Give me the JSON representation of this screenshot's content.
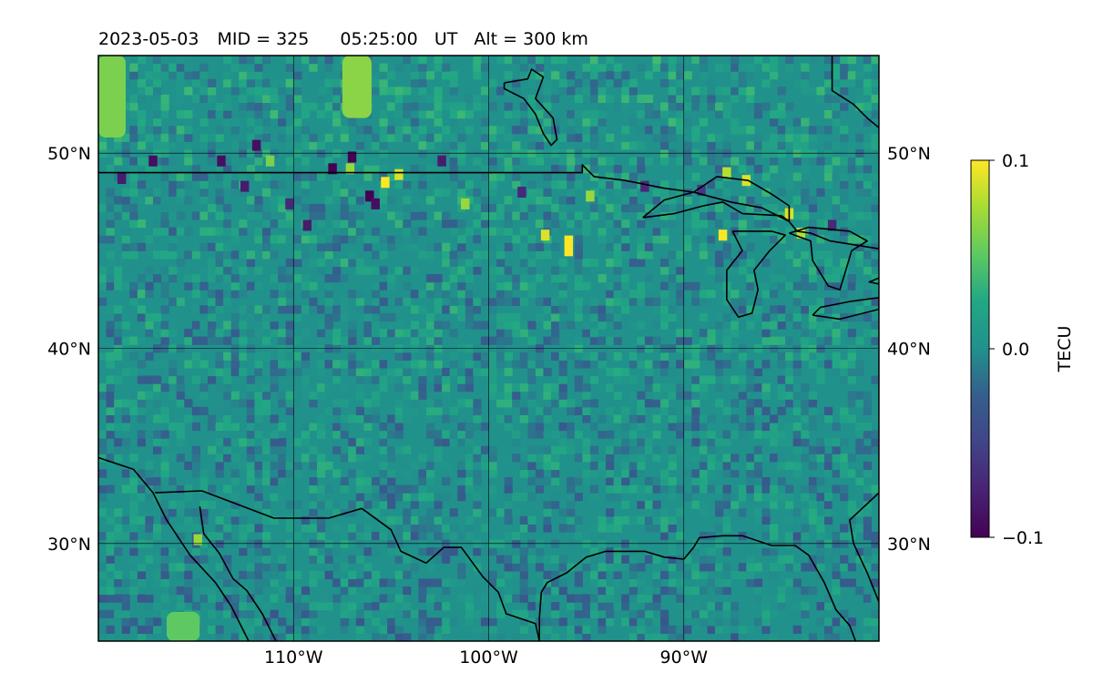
{
  "title": {
    "date": "2023-05-03",
    "mid": "MID = 325",
    "time": "05:25:00",
    "ut": "UT",
    "alt": "Alt = 300 km"
  },
  "map": {
    "lon_range": [
      -120,
      -80
    ],
    "lat_range": [
      25,
      55
    ],
    "grid": true,
    "lat_ticks": [
      {
        "value": 30,
        "label": "30°N"
      },
      {
        "value": 40,
        "label": "40°N"
      },
      {
        "value": 50,
        "label": "50°N"
      }
    ],
    "lon_ticks": [
      {
        "value": -110,
        "label": "110°W"
      },
      {
        "value": -100,
        "label": "100°W"
      },
      {
        "value": -90,
        "label": "90°W"
      }
    ]
  },
  "colorbar": {
    "label": "TECU",
    "colormap": "viridis",
    "range": [
      -0.1,
      0.1
    ],
    "ticks": [
      {
        "value": 0.1,
        "label": "0.1"
      },
      {
        "value": 0.0,
        "label": "0.0"
      },
      {
        "value": -0.1,
        "label": "−0.1"
      }
    ]
  },
  "chart_data": {
    "type": "heatmap",
    "title": "2023-05-03  MID = 325    05:25:00  UT  Alt = 300 km",
    "xlabel": "",
    "ylabel": "",
    "xlim": [
      -120,
      -80
    ],
    "ylim": [
      25,
      55
    ],
    "colorbar_label": "TECU",
    "zlim": [
      -0.1,
      0.1
    ],
    "background_value": 0.0,
    "regions": [
      {
        "name": "noise",
        "lon": [
          -120,
          -80
        ],
        "lat": [
          25,
          55
        ],
        "value": 0.0
      },
      {
        "name": "green-plume-1",
        "lon": [
          -120,
          -118.6
        ],
        "lat": [
          50.8,
          55
        ],
        "value": 0.06
      },
      {
        "name": "green-plume-2",
        "lon": [
          -107.5,
          -106.0
        ],
        "lat": [
          51.8,
          55
        ],
        "value": 0.065
      },
      {
        "name": "green-patch-se",
        "lon": [
          -116.5,
          -114.8
        ],
        "lat": [
          25,
          26.5
        ],
        "value": 0.05
      }
    ],
    "hot_spots": [
      {
        "lon": -105.3,
        "lat": 48.5,
        "value": 0.1
      },
      {
        "lon": -104.6,
        "lat": 48.9,
        "value": 0.09
      },
      {
        "lon": -95.9,
        "lat": 45.0,
        "value": 0.1
      },
      {
        "lon": -95.9,
        "lat": 45.5,
        "value": 0.1
      },
      {
        "lon": -97.1,
        "lat": 45.8,
        "value": 0.09
      },
      {
        "lon": -88.0,
        "lat": 45.8,
        "value": 0.1
      },
      {
        "lon": -86.8,
        "lat": 48.6,
        "value": 0.09
      },
      {
        "lon": -84.6,
        "lat": 46.9,
        "value": 0.09
      },
      {
        "lon": -87.8,
        "lat": 49.0,
        "value": 0.08
      },
      {
        "lon": -84.0,
        "lat": 45.9,
        "value": 0.08
      },
      {
        "lon": -101.2,
        "lat": 47.4,
        "value": 0.07
      },
      {
        "lon": -107.1,
        "lat": 49.2,
        "value": 0.07
      },
      {
        "lon": -111.2,
        "lat": 49.6,
        "value": 0.06
      },
      {
        "lon": -94.8,
        "lat": 47.8,
        "value": 0.07
      },
      {
        "lon": -114.9,
        "lat": 30.2,
        "value": 0.07
      }
    ],
    "cold_spots": [
      {
        "lon": -107.0,
        "lat": 49.8,
        "value": -0.1
      },
      {
        "lon": -108.0,
        "lat": 49.2,
        "value": -0.1
      },
      {
        "lon": -106.1,
        "lat": 47.8,
        "value": -0.1
      },
      {
        "lon": -105.8,
        "lat": 47.4,
        "value": -0.09
      },
      {
        "lon": -111.9,
        "lat": 50.4,
        "value": -0.09
      },
      {
        "lon": -113.7,
        "lat": 49.6,
        "value": -0.09
      },
      {
        "lon": -117.2,
        "lat": 49.6,
        "value": -0.09
      },
      {
        "lon": -118.8,
        "lat": 48.7,
        "value": -0.08
      },
      {
        "lon": -112.5,
        "lat": 48.3,
        "value": -0.08
      },
      {
        "lon": -110.2,
        "lat": 47.4,
        "value": -0.07
      },
      {
        "lon": -109.3,
        "lat": 46.3,
        "value": -0.08
      },
      {
        "lon": -102.4,
        "lat": 49.6,
        "value": -0.08
      },
      {
        "lon": -98.3,
        "lat": 48.0,
        "value": -0.07
      },
      {
        "lon": -92.0,
        "lat": 48.3,
        "value": -0.07
      },
      {
        "lon": -89.1,
        "lat": 48.1,
        "value": -0.06
      },
      {
        "lon": -82.4,
        "lat": 46.3,
        "value": -0.07
      }
    ],
    "coastlines": [
      {
        "name": "us-canada-border",
        "points": [
          [
            -120,
            49
          ],
          [
            -95.2,
            49
          ],
          [
            -95.2,
            49.4
          ],
          [
            -94.6,
            48.8
          ],
          [
            -93.0,
            48.6
          ],
          [
            -91.0,
            48.2
          ],
          [
            -89.5,
            48.0
          ],
          [
            -87.6,
            47.5
          ],
          [
            -86.0,
            47.2
          ],
          [
            -84.6,
            46.5
          ],
          [
            -84.2,
            46.0
          ],
          [
            -83.5,
            45.9
          ],
          [
            -82.5,
            45.5
          ],
          [
            -80,
            45.1
          ]
        ]
      },
      {
        "name": "lake-winnipeg",
        "points": [
          [
            -99.2,
            53.6
          ],
          [
            -98.0,
            53.8
          ],
          [
            -97.8,
            54.3
          ],
          [
            -97.2,
            53.9
          ],
          [
            -97.6,
            52.8
          ],
          [
            -96.7,
            51.8
          ],
          [
            -96.5,
            50.7
          ],
          [
            -96.8,
            50.4
          ],
          [
            -97.2,
            51.0
          ],
          [
            -97.6,
            52.0
          ],
          [
            -98.2,
            52.8
          ],
          [
            -99.2,
            53.3
          ],
          [
            -99.2,
            53.6
          ]
        ]
      },
      {
        "name": "lake-superior",
        "points": [
          [
            -92.1,
            46.7
          ],
          [
            -90.5,
            46.9
          ],
          [
            -89.0,
            47.3
          ],
          [
            -88.0,
            47.5
          ],
          [
            -87.0,
            46.9
          ],
          [
            -85.0,
            46.8
          ],
          [
            -84.6,
            46.5
          ],
          [
            -84.6,
            47.3
          ],
          [
            -85.5,
            47.9
          ],
          [
            -86.7,
            48.6
          ],
          [
            -88.3,
            48.8
          ],
          [
            -89.5,
            48.0
          ],
          [
            -91.0,
            47.6
          ],
          [
            -92.1,
            46.7
          ]
        ]
      },
      {
        "name": "lake-michigan",
        "points": [
          [
            -87.5,
            46.0
          ],
          [
            -87.0,
            45.0
          ],
          [
            -87.8,
            44.0
          ],
          [
            -87.8,
            42.5
          ],
          [
            -87.2,
            41.6
          ],
          [
            -86.5,
            41.8
          ],
          [
            -86.2,
            43.0
          ],
          [
            -86.4,
            44.0
          ],
          [
            -85.6,
            45.0
          ],
          [
            -84.8,
            45.8
          ],
          [
            -85.5,
            46.0
          ],
          [
            -87.5,
            46.0
          ]
        ]
      },
      {
        "name": "lake-huron",
        "points": [
          [
            -84.6,
            45.9
          ],
          [
            -83.5,
            45.5
          ],
          [
            -83.4,
            44.5
          ],
          [
            -82.6,
            43.2
          ],
          [
            -82.0,
            43.0
          ],
          [
            -81.7,
            44.0
          ],
          [
            -81.4,
            45.0
          ],
          [
            -80.6,
            45.5
          ],
          [
            -81.5,
            46.0
          ],
          [
            -82.5,
            46.1
          ],
          [
            -83.6,
            46.2
          ],
          [
            -84.6,
            45.9
          ]
        ]
      },
      {
        "name": "lake-erie",
        "points": [
          [
            -83.4,
            41.7
          ],
          [
            -82.0,
            41.5
          ],
          [
            -80,
            42.0
          ],
          [
            -80,
            42.6
          ],
          [
            -81.5,
            42.4
          ],
          [
            -83.0,
            42.1
          ],
          [
            -83.4,
            41.7
          ]
        ]
      },
      {
        "name": "lake-ontario-edge",
        "points": [
          [
            -80,
            43.3
          ],
          [
            -80.5,
            43.4
          ],
          [
            -80,
            43.6
          ]
        ]
      },
      {
        "name": "hudson-bay-coast",
        "points": [
          [
            -82.4,
            55
          ],
          [
            -82.4,
            53.2
          ],
          [
            -81.3,
            52.5
          ],
          [
            -80.6,
            51.8
          ],
          [
            -80,
            51.3
          ]
        ]
      },
      {
        "name": "pacific-coast-mexico",
        "points": [
          [
            -120,
            34.4
          ],
          [
            -118.2,
            33.8
          ],
          [
            -117.2,
            32.6
          ],
          [
            -116.5,
            31.2
          ],
          [
            -115.3,
            29.4
          ],
          [
            -114.0,
            28.0
          ],
          [
            -113.2,
            26.8
          ],
          [
            -112.3,
            25
          ]
        ]
      },
      {
        "name": "baja-gulf",
        "points": [
          [
            -114.8,
            31.9
          ],
          [
            -114.6,
            30.5
          ],
          [
            -113.8,
            29.5
          ],
          [
            -113.1,
            28.2
          ],
          [
            -112.4,
            27.6
          ],
          [
            -111.6,
            26.4
          ],
          [
            -110.9,
            25
          ]
        ]
      },
      {
        "name": "us-mexico-border",
        "points": [
          [
            -117.1,
            32.6
          ],
          [
            -114.7,
            32.7
          ],
          [
            -111.0,
            31.3
          ],
          [
            -108.2,
            31.3
          ],
          [
            -106.5,
            31.8
          ],
          [
            -105.0,
            30.7
          ],
          [
            -104.5,
            29.6
          ],
          [
            -103.2,
            29.0
          ],
          [
            -102.3,
            29.8
          ],
          [
            -101.4,
            29.8
          ],
          [
            -100.3,
            28.3
          ],
          [
            -99.5,
            27.5
          ],
          [
            -99.1,
            26.4
          ],
          [
            -97.6,
            25.9
          ],
          [
            -97.4,
            25
          ]
        ]
      },
      {
        "name": "gulf-coast",
        "points": [
          [
            -97.4,
            25
          ],
          [
            -97.4,
            26.2
          ],
          [
            -97.3,
            27.5
          ],
          [
            -97.0,
            28.0
          ],
          [
            -96.0,
            28.5
          ],
          [
            -95.0,
            29.3
          ],
          [
            -94.0,
            29.6
          ],
          [
            -92.0,
            29.6
          ],
          [
            -91.0,
            29.3
          ],
          [
            -90.0,
            29.2
          ],
          [
            -89.5,
            29.8
          ],
          [
            -89.2,
            30.3
          ],
          [
            -88.0,
            30.4
          ],
          [
            -87.0,
            30.4
          ],
          [
            -85.5,
            29.9
          ],
          [
            -84.3,
            29.9
          ],
          [
            -83.6,
            29.4
          ],
          [
            -82.8,
            28.0
          ],
          [
            -82.2,
            26.6
          ],
          [
            -81.5,
            25.8
          ],
          [
            -81.2,
            25
          ]
        ]
      },
      {
        "name": "florida-atlantic",
        "points": [
          [
            -80,
            27.0
          ],
          [
            -80.6,
            28.5
          ],
          [
            -81.3,
            30.0
          ],
          [
            -81.5,
            31.2
          ],
          [
            -80,
            32.6
          ]
        ]
      }
    ]
  }
}
